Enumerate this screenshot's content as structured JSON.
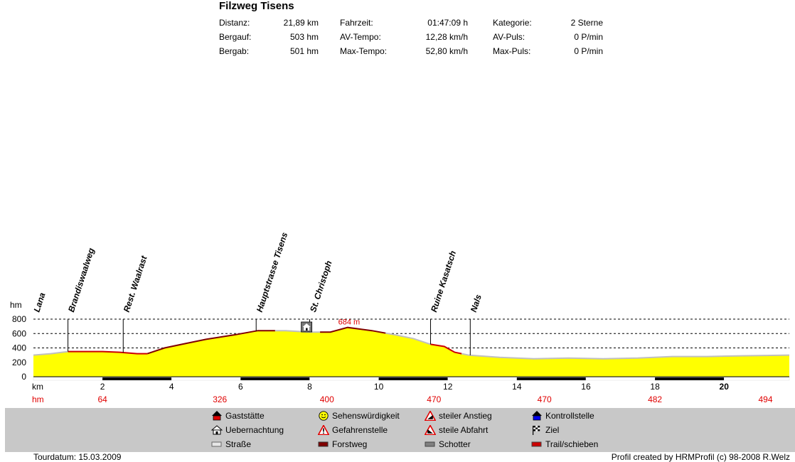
{
  "title": "Filzweg Tisens",
  "stats": [
    {
      "label": "Distanz:",
      "value": "21,89 km"
    },
    {
      "label": "Fahrzeit:",
      "value": "01:47:09 h"
    },
    {
      "label": "Kategorie:",
      "value": "2 Sterne"
    },
    {
      "label": "Bergauf:",
      "value": "503 hm"
    },
    {
      "label": "AV-Tempo:",
      "value": "12,28 km/h"
    },
    {
      "label": "AV-Puls:",
      "value": "0 P/min"
    },
    {
      "label": "Bergab:",
      "value": "501 hm"
    },
    {
      "label": "Max-Tempo:",
      "value": "52,80 km/h"
    },
    {
      "label": "Max-Puls:",
      "value": "0 P/min"
    }
  ],
  "chart_data": {
    "type": "area",
    "ylabel": "hm",
    "xlabel": "km",
    "ylim": [
      0,
      800
    ],
    "xlim": [
      0,
      21.89
    ],
    "yticks": [
      0,
      200,
      400,
      600,
      800
    ],
    "xticks": [
      2,
      4,
      6,
      8,
      10,
      12,
      14,
      16,
      18,
      20
    ],
    "grid": "dashed horizontal at 200, 400, 600, 800",
    "max_label": "684 m",
    "max_point": {
      "x": 9.1,
      "y": 684
    },
    "fill_color": "#ffff00",
    "profile": [
      {
        "x": 0.0,
        "y": 300
      },
      {
        "x": 0.5,
        "y": 320
      },
      {
        "x": 1.0,
        "y": 350
      },
      {
        "x": 1.5,
        "y": 350
      },
      {
        "x": 2.0,
        "y": 350
      },
      {
        "x": 2.5,
        "y": 340
      },
      {
        "x": 3.0,
        "y": 320
      },
      {
        "x": 3.3,
        "y": 320
      },
      {
        "x": 3.8,
        "y": 400
      },
      {
        "x": 4.3,
        "y": 450
      },
      {
        "x": 5.0,
        "y": 520
      },
      {
        "x": 5.8,
        "y": 580
      },
      {
        "x": 6.5,
        "y": 640
      },
      {
        "x": 7.3,
        "y": 640
      },
      {
        "x": 8.0,
        "y": 620
      },
      {
        "x": 8.6,
        "y": 620
      },
      {
        "x": 9.1,
        "y": 684
      },
      {
        "x": 9.8,
        "y": 640
      },
      {
        "x": 10.5,
        "y": 580
      },
      {
        "x": 11.0,
        "y": 530
      },
      {
        "x": 11.5,
        "y": 450
      },
      {
        "x": 11.9,
        "y": 420
      },
      {
        "x": 12.2,
        "y": 340
      },
      {
        "x": 12.6,
        "y": 300
      },
      {
        "x": 13.5,
        "y": 270
      },
      {
        "x": 14.5,
        "y": 250
      },
      {
        "x": 15.5,
        "y": 260
      },
      {
        "x": 16.5,
        "y": 250
      },
      {
        "x": 17.5,
        "y": 260
      },
      {
        "x": 18.5,
        "y": 280
      },
      {
        "x": 19.5,
        "y": 280
      },
      {
        "x": 20.5,
        "y": 290
      },
      {
        "x": 21.89,
        "y": 300
      }
    ],
    "segments": [
      {
        "from": 0.0,
        "to": 1.0,
        "kind": "Straße"
      },
      {
        "from": 1.0,
        "to": 3.3,
        "kind": "Trail/schieben"
      },
      {
        "from": 3.3,
        "to": 7.0,
        "kind": "Forstweg"
      },
      {
        "from": 7.0,
        "to": 8.3,
        "kind": "Straße"
      },
      {
        "from": 8.3,
        "to": 10.2,
        "kind": "Forstweg"
      },
      {
        "from": 10.2,
        "to": 11.5,
        "kind": "Straße"
      },
      {
        "from": 11.5,
        "to": 12.4,
        "kind": "Trail/schieben"
      },
      {
        "from": 12.4,
        "to": 21.89,
        "kind": "Straße"
      }
    ],
    "segment_colors": {
      "Straße": "#c0c0c0",
      "Forstweg": "#800000",
      "Trail/schieben": "#cc0000",
      "Schotter": "#808080"
    },
    "waypoints": [
      {
        "x": 0.0,
        "label": "Lana"
      },
      {
        "x": 1.0,
        "label": "Brandiswaalweg"
      },
      {
        "x": 2.6,
        "label": "Rest.  Waalrast"
      },
      {
        "x": 6.45,
        "label": "Hauptstrasse Tisens"
      },
      {
        "x": 8.0,
        "label": "St. Christoph"
      },
      {
        "x": 11.5,
        "label": "Ruine Kasatsch"
      },
      {
        "x": 12.65,
        "label": "Nals"
      }
    ],
    "poi": {
      "x": 7.9,
      "type": "Uebernachtung"
    },
    "hm_row": [
      {
        "x": 2,
        "value": "64"
      },
      {
        "x": 5.4,
        "value": "326"
      },
      {
        "x": 8.5,
        "value": "400"
      },
      {
        "x": 11.6,
        "value": "470"
      },
      {
        "x": 14.8,
        "value": "470"
      },
      {
        "x": 18.0,
        "value": "482"
      },
      {
        "x": 21.2,
        "value": "494"
      }
    ],
    "row_labels": {
      "km": "km",
      "hm": "hm"
    }
  },
  "legend": [
    {
      "label": "Gaststätte",
      "icon": "house-icon"
    },
    {
      "label": "Sehenswürdigkeit",
      "icon": "smiley-icon"
    },
    {
      "label": "steiler Anstieg",
      "icon": "warning-up-icon"
    },
    {
      "label": "Kontrollstelle",
      "icon": "house-blue-icon"
    },
    {
      "label": "Uebernachtung",
      "icon": "hut-icon"
    },
    {
      "label": "Gefahrenstelle",
      "icon": "warning-icon"
    },
    {
      "label": "steile Abfahrt",
      "icon": "warning-down-icon"
    },
    {
      "label": "Ziel",
      "icon": "flag-icon"
    },
    {
      "label": "Straße",
      "icon": "strasse-swatch-icon",
      "color": "#c0c0c0"
    },
    {
      "label": "Forstweg",
      "icon": "forstweg-swatch-icon",
      "color": "#800000"
    },
    {
      "label": "Schotter",
      "icon": "schotter-swatch-icon",
      "color": "#808080"
    },
    {
      "label": "Trail/schieben",
      "icon": "trail-swatch-icon",
      "color": "#cc0000"
    }
  ],
  "footer": {
    "tourdate": "Tourdatum: 15.03.2009",
    "credits": "Profil created by HRMProfil (c) 98-2008 R.Welz"
  }
}
